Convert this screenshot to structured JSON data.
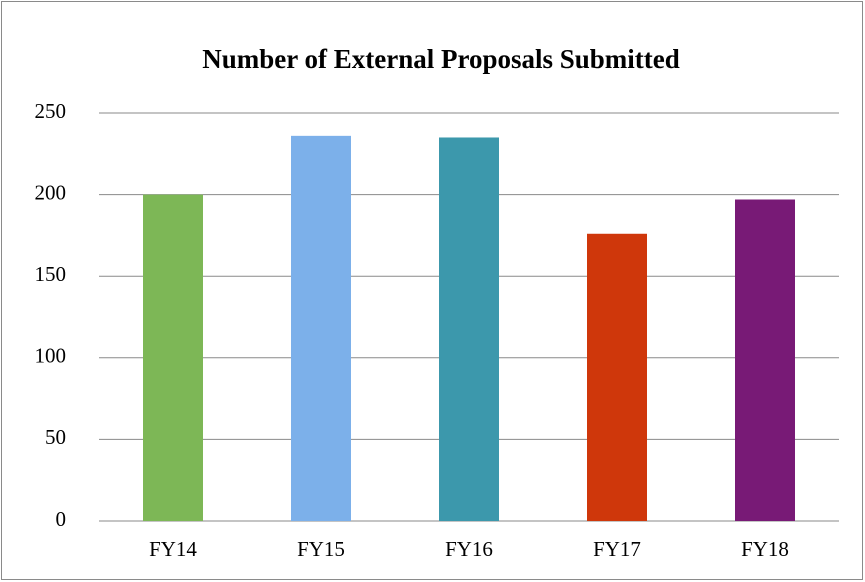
{
  "chart_data": {
    "type": "bar",
    "title": "Number of External Proposals Submitted",
    "categories": [
      "FY14",
      "FY15",
      "FY16",
      "FY17",
      "FY18"
    ],
    "values": [
      200,
      236,
      235,
      176,
      197
    ],
    "colors": [
      "#7db756",
      "#7cb0ea",
      "#3c98ac",
      "#cf370b",
      "#781a76"
    ],
    "ylim": [
      0,
      250
    ],
    "yticks": [
      0,
      50,
      100,
      150,
      200,
      250
    ],
    "grid": true
  }
}
